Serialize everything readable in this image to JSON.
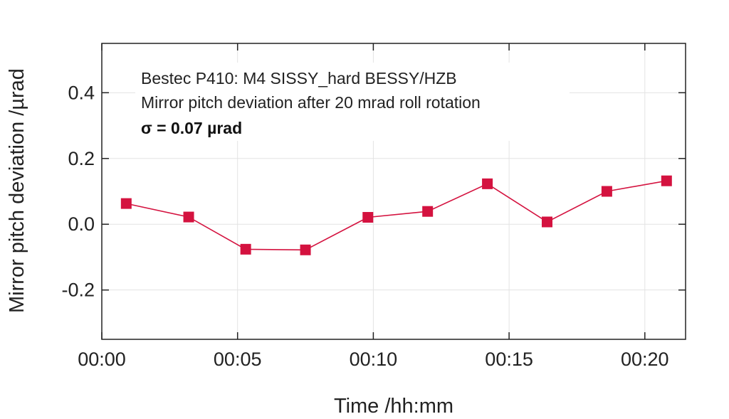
{
  "chart_data": {
    "type": "line",
    "title": "",
    "xlabel": "Time /hh:mm",
    "ylabel": "Mirror pitch deviation /µrad",
    "annotations": [
      "Bestec P410: M4 SISSY_hard BESSY/HZB",
      "Mirror pitch deviation after 20 mrad roll rotation",
      "σ = 0.07 µrad"
    ],
    "x_unit": "minutes",
    "xlim": [
      0,
      21.5
    ],
    "ylim": [
      -0.35,
      0.55
    ],
    "x_ticks": [
      0,
      5,
      10,
      15,
      20
    ],
    "x_tick_labels": [
      "00:00",
      "00:05",
      "00:10",
      "00:15",
      "00:20"
    ],
    "y_ticks": [
      -0.2,
      0.0,
      0.2,
      0.4
    ],
    "y_tick_labels": [
      "-0.2",
      "0.0",
      "0.2",
      "0.4"
    ],
    "grid": true,
    "series": [
      {
        "color": "#d4123f",
        "marker": "square",
        "x": [
          0.9,
          3.2,
          5.3,
          7.5,
          9.8,
          12.0,
          14.2,
          16.4,
          18.6,
          20.8
        ],
        "y": [
          0.063,
          0.022,
          -0.076,
          -0.078,
          0.021,
          0.039,
          0.123,
          0.007,
          0.1,
          0.132
        ]
      }
    ]
  }
}
